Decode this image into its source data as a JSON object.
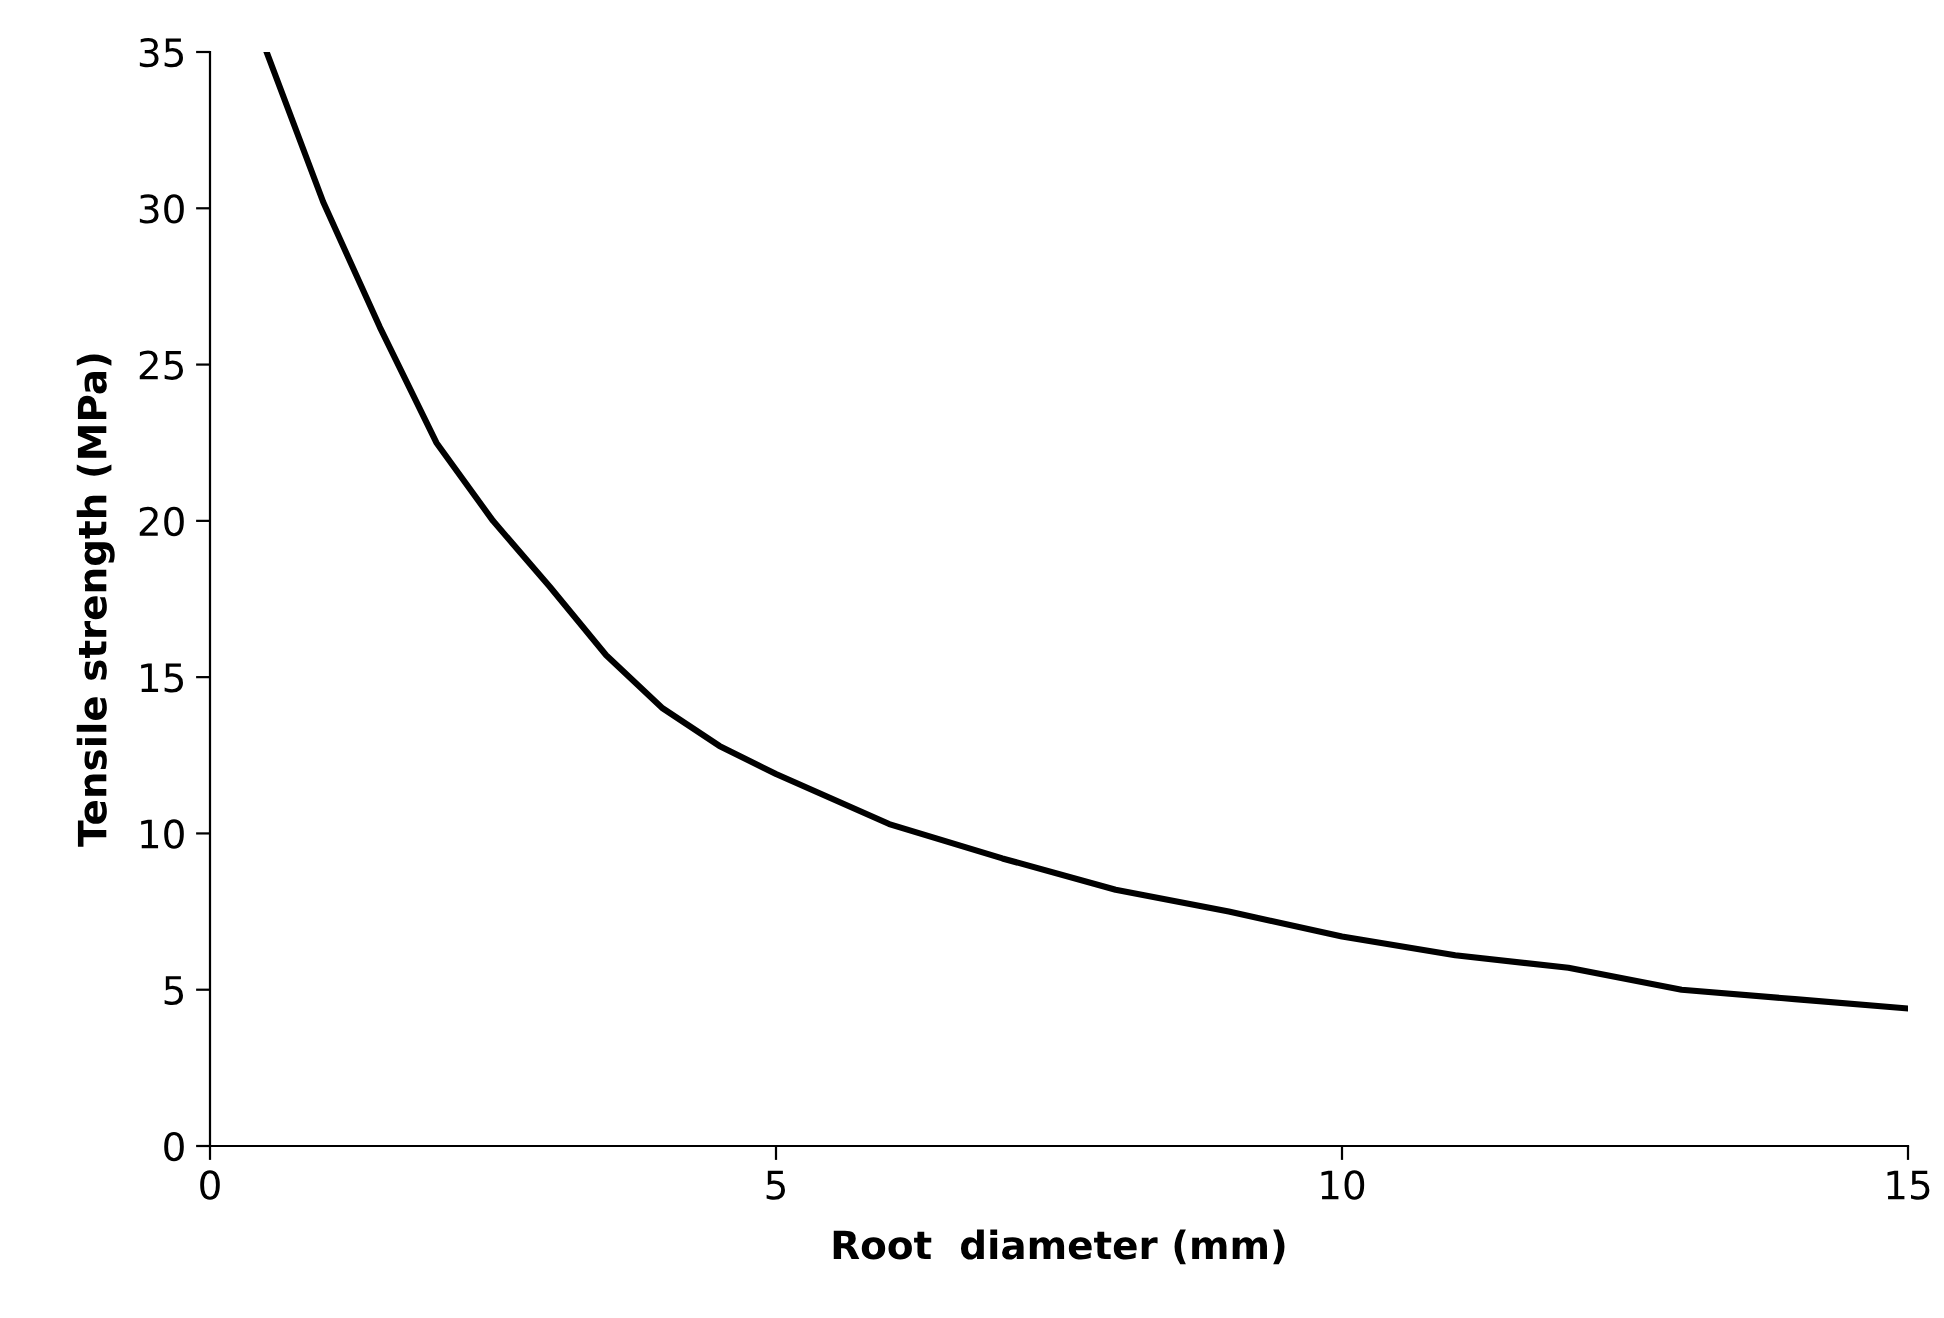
{
  "chart_data": {
    "type": "line",
    "xlabel": "Root  diameter (mm)",
    "ylabel": "Tensile strength (MPa)",
    "x": [
      0.5,
      1,
      1.5,
      2,
      2.5,
      3,
      3.5,
      4,
      4.5,
      5,
      6,
      7,
      8,
      9,
      10,
      11,
      12,
      13,
      14,
      15
    ],
    "series": [
      {
        "color": "#000000",
        "values": [
          35,
          30.2,
          26.2,
          22.5,
          20,
          17.9,
          15.7,
          14.0,
          12.8,
          11.9,
          10.3,
          9.2,
          8.2,
          7.5,
          6.7,
          6.1,
          5.7,
          5.0,
          4.7,
          4.4
        ]
      }
    ],
    "xlim": [
      0,
      15
    ],
    "ylim": [
      0,
      35
    ],
    "xticks": [
      0,
      5,
      10,
      15
    ],
    "yticks": [
      0,
      5,
      10,
      15,
      20,
      25,
      30,
      35
    ],
    "grid": false,
    "legend": false,
    "marker": "none",
    "line_style": "solid"
  }
}
